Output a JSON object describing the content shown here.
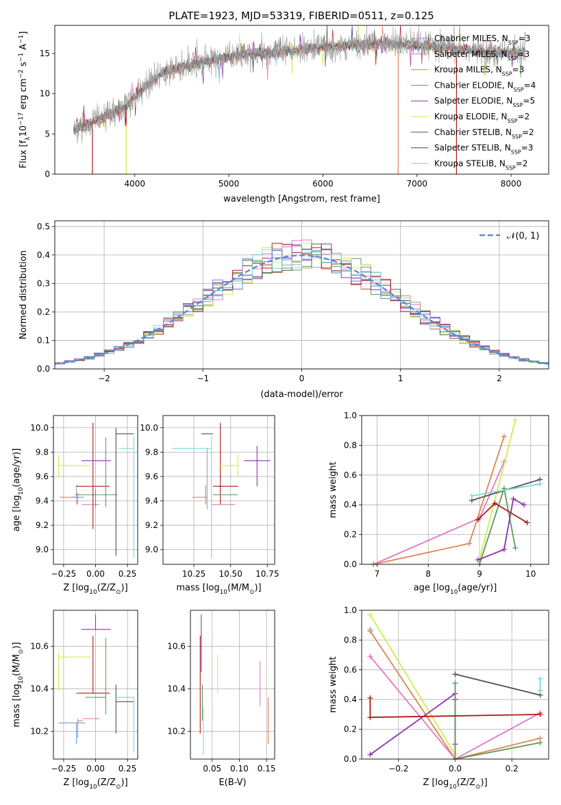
{
  "colors": {
    "chabrier_miles": "#a0a0a0",
    "salpeter_miles": "#e377c2",
    "kroupa_miles": "#dd8452",
    "chabrier_elodie": "#5a9a5a",
    "salpeter_elodie": "#8e2fae",
    "kroupa_elodie": "#d4ea4a",
    "chabrier_stelib": "#505050",
    "salpeter_stelib": "#b01616",
    "kroupa_stelib": "#7ad8dc",
    "normal_fit": "#5a8bd6",
    "blue_extra": "#6e9bd8"
  },
  "chart_data": [
    {
      "id": "spectrum",
      "type": "line",
      "title": "PLATE=1923, MJD=53319, FIBERID=0511, z=0.125",
      "xlabel": "wavelength [Angstrom, rest frame]",
      "ylabel_parts": [
        "Flux [f",
        "λ",
        "10",
        "−17",
        " erg cm",
        "−2",
        " s",
        "−1",
        " A",
        "−1",
        "]"
      ],
      "xlim": [
        3150,
        8400
      ],
      "ylim": [
        0,
        18.5
      ],
      "xticks": [
        4000,
        5000,
        6000,
        7000,
        8000
      ],
      "yticks": [
        0,
        5,
        10,
        15
      ],
      "continuum": [
        [
          3350,
          5.5
        ],
        [
          3500,
          6.2
        ],
        [
          3700,
          7.3
        ],
        [
          3900,
          8.4
        ],
        [
          4100,
          10.8
        ],
        [
          4300,
          12.5
        ],
        [
          4500,
          13.3
        ],
        [
          4700,
          13.9
        ],
        [
          4900,
          14.4
        ],
        [
          5200,
          14.9
        ],
        [
          5500,
          15.1
        ],
        [
          5800,
          15.5
        ],
        [
          6000,
          15.8
        ],
        [
          6300,
          16.1
        ],
        [
          6600,
          16.2
        ],
        [
          7000,
          16.0
        ],
        [
          7400,
          15.6
        ],
        [
          7800,
          15.1
        ],
        [
          8150,
          15.2
        ]
      ],
      "wmin": 3350,
      "wmax": 8150,
      "drops": [
        [
          3550,
          "salpeter_stelib"
        ],
        [
          3910,
          "kroupa_elodie"
        ],
        [
          6800,
          "kroupa_miles"
        ],
        [
          7420,
          "salpeter_stelib"
        ]
      ],
      "legend": [
        {
          "key": "chabrier_miles",
          "name": "Chabrier MILES",
          "n": "3"
        },
        {
          "key": "salpeter_miles",
          "name": "Salpeter MILES",
          "n": "3"
        },
        {
          "key": "kroupa_miles",
          "name": "Kroupa MILES",
          "n": "3"
        },
        {
          "key": "chabrier_elodie",
          "name": "Chabrier ELODIE",
          "n": "4"
        },
        {
          "key": "salpeter_elodie",
          "name": "Salpeter ELODIE",
          "n": "5"
        },
        {
          "key": "kroupa_elodie",
          "name": "Kroupa ELODIE",
          "n": "2"
        },
        {
          "key": "chabrier_stelib",
          "name": "Chabrier STELIB",
          "n": "2"
        },
        {
          "key": "salpeter_stelib",
          "name": "Salpeter STELIB",
          "n": "3"
        },
        {
          "key": "kroupa_stelib",
          "name": "Kroupa STELIB",
          "n": "2"
        }
      ],
      "legend_placement": "right",
      "grid": false
    },
    {
      "id": "residuals",
      "type": "histogram",
      "xlabel": "(data-model)/error",
      "ylabel": "Normed distribution",
      "xlim": [
        -2.5,
        2.5
      ],
      "ylim": [
        0,
        0.52
      ],
      "xticks": [
        -2,
        -1,
        0,
        1,
        2
      ],
      "yticks": [
        0.0,
        0.1,
        0.2,
        0.3,
        0.4,
        0.5
      ],
      "bin_width": 0.1,
      "legend": "𝒩(0, 1)",
      "legend_placement": "upper right",
      "grid": true
    },
    {
      "id": "age_vs_z",
      "type": "errorbar",
      "xlabel_parts": [
        "Z [log",
        "10",
        "(Z/Z",
        "⊙",
        ")]"
      ],
      "ylabel_parts": [
        "age  [log",
        "10",
        "(age/yr)]"
      ],
      "xlim": [
        -0.33,
        0.33
      ],
      "ylim": [
        8.88,
        10.1
      ],
      "xticks": [
        -0.25,
        0.0,
        0.25
      ],
      "yticks": [
        9.0,
        9.2,
        9.4,
        9.6,
        9.8,
        10.0
      ],
      "points": [
        {
          "c": "kroupa_elodie",
          "x": -0.29,
          "y": 9.69,
          "xe": [
            0.0,
            0.25
          ],
          "ye": [
            0.09,
            0.09
          ]
        },
        {
          "c": "kroupa_miles",
          "x": -0.14,
          "y": 9.43,
          "xe": [
            0.14,
            0.0
          ],
          "ye": [
            0.06,
            0.04
          ]
        },
        {
          "c": "blue_extra",
          "x": -0.19,
          "y": 9.43,
          "xe": [
            0.0,
            0.1
          ],
          "ye": [
            0.0,
            0.0
          ]
        },
        {
          "c": "salpeter_miles",
          "x": -0.11,
          "y": 9.37,
          "xe": [
            0.0,
            0.14
          ],
          "ye": [
            0.0,
            0.0
          ]
        },
        {
          "c": "chabrier_miles",
          "x": -0.15,
          "y": 9.44,
          "xe": [
            0.0,
            0.0
          ],
          "ye": [
            0.07,
            0.09
          ]
        },
        {
          "c": "chabrier_elodie",
          "x": 0.0,
          "y": 9.45,
          "xe": [
            0.16,
            0.17
          ],
          "ye": [
            0.1,
            0.05
          ]
        },
        {
          "c": "salpeter_stelib",
          "x": -0.02,
          "y": 9.52,
          "xe": [
            0.13,
            0.13
          ],
          "ye": [
            0.35,
            0.52
          ]
        },
        {
          "c": "salpeter_elodie",
          "x": 0.0,
          "y": 9.73,
          "xe": [
            0.11,
            0.12
          ],
          "ye": [
            0.0,
            0.0
          ]
        },
        {
          "c": "chabrier_elodie",
          "x": 0.08,
          "y": 9.35,
          "xe": [
            0.0,
            0.0
          ],
          "ye": [
            0.0,
            0.57
          ]
        },
        {
          "c": "chabrier_stelib",
          "x": 0.16,
          "y": 9.95,
          "xe": [
            0.0,
            0.14
          ],
          "ye": [
            1.0,
            0.05
          ]
        },
        {
          "c": "kroupa_stelib",
          "x": 0.3,
          "y": 9.83,
          "xe": [
            0.12,
            0.0
          ],
          "ye": [
            0.9,
            0.1
          ]
        }
      ],
      "grid": true
    },
    {
      "id": "age_vs_mass",
      "type": "errorbar",
      "xlabel_parts": [
        "mass [log",
        "10",
        "(M/M",
        "⊙",
        ")]"
      ],
      "ylabel": "",
      "xlim": [
        10.04,
        10.8
      ],
      "ylim": [
        8.88,
        10.1
      ],
      "xticks": [
        10.25,
        10.5,
        10.75
      ],
      "yticks": [
        9.0,
        9.2,
        9.4,
        9.6,
        9.8,
        10.0
      ],
      "points": [
        {
          "c": "kroupa_stelib",
          "x": 10.1,
          "y": 9.83,
          "xe": [
            0.0,
            0.27
          ],
          "ye": [
            0.0,
            0.0
          ]
        },
        {
          "c": "chabrier_stelib",
          "x": 10.3,
          "y": 9.95,
          "xe": [
            0.0,
            0.08
          ],
          "ye": [
            0.0,
            0.0
          ]
        },
        {
          "c": "kroupa_miles",
          "x": 10.24,
          "y": 9.43,
          "xe": [
            0.0,
            0.1
          ],
          "ye": [
            0.0,
            0.0
          ]
        },
        {
          "c": "blue_extra",
          "x": 10.33,
          "y": 9.43,
          "xe": [
            0.0,
            0.0
          ],
          "ye": [
            0.06,
            0.1
          ]
        },
        {
          "c": "chabrier_miles",
          "x": 10.34,
          "y": 9.43,
          "xe": [
            0.0,
            0.0
          ],
          "ye": [
            0.1,
            0.4
          ]
        },
        {
          "c": "kroupa_stelib",
          "x": 10.37,
          "y": 9.83,
          "xe": [
            0.0,
            0.0
          ],
          "ye": [
            0.9,
            0.1
          ]
        },
        {
          "c": "salpeter_stelib",
          "x": 10.38,
          "y": 9.52,
          "xe": [
            0.0,
            0.17
          ],
          "ye": [
            0.0,
            0.0
          ]
        },
        {
          "c": "salpeter_stelib",
          "x": 10.43,
          "y": 9.52,
          "xe": [
            0.0,
            0.0
          ],
          "ye": [
            0.15,
            0.52
          ]
        },
        {
          "c": "kroupa_elodie",
          "x": 10.55,
          "y": 9.69,
          "xe": [
            0.13,
            0.0
          ],
          "ye": [
            0.09,
            0.09
          ]
        },
        {
          "c": "chabrier_elodie",
          "x": 10.45,
          "y": 9.45,
          "xe": [
            0.07,
            0.1
          ],
          "ye": [
            0.0,
            0.0
          ]
        },
        {
          "c": "salpeter_miles",
          "x": 10.45,
          "y": 9.37,
          "xe": [
            0.08,
            0.08
          ],
          "ye": [
            0.0,
            0.0
          ]
        },
        {
          "c": "salpeter_elodie",
          "x": 10.68,
          "y": 9.73,
          "xe": [
            0.09,
            0.09
          ],
          "ye": [
            0.21,
            0.12
          ]
        }
      ],
      "grid": true
    },
    {
      "id": "weight_vs_age",
      "type": "line",
      "xlabel_parts": [
        "age  [log",
        "10",
        "(age/yr)]"
      ],
      "ylabel": "mass weight",
      "xlim": [
        6.7,
        10.35
      ],
      "ylim": [
        0,
        1.0
      ],
      "xticks": [
        7,
        8,
        9,
        10
      ],
      "yticks": [
        0.0,
        0.2,
        0.4,
        0.6,
        0.8,
        1.0
      ],
      "series": [
        {
          "c": "salpeter_miles",
          "x": [
            6.93,
            9.0,
            9.48
          ],
          "y": [
            0.0,
            0.31,
            0.69
          ]
        },
        {
          "c": "kroupa_miles",
          "x": [
            6.93,
            8.8,
            9.48
          ],
          "y": [
            0.0,
            0.14,
            0.86
          ]
        },
        {
          "c": "kroupa_elodie",
          "x": [
            9.0,
            9.7
          ],
          "y": [
            0.03,
            0.97
          ]
        },
        {
          "c": "chabrier_elodie",
          "x": [
            9.0,
            9.48,
            9.7
          ],
          "y": [
            0.0,
            0.51,
            0.11
          ]
        },
        {
          "c": "salpeter_elodie",
          "x": [
            8.97,
            9.48,
            9.66,
            9.87
          ],
          "y": [
            0.03,
            0.1,
            0.44,
            0.4
          ]
        },
        {
          "c": "salpeter_stelib",
          "x": [
            8.97,
            9.3,
            9.93
          ],
          "y": [
            0.3,
            0.41,
            0.28
          ]
        },
        {
          "c": "chabrier_stelib",
          "x": [
            8.85,
            10.18
          ],
          "y": [
            0.43,
            0.57
          ]
        },
        {
          "c": "kroupa_stelib",
          "x": [
            8.85,
            10.18
          ],
          "y": [
            0.46,
            0.54
          ]
        }
      ],
      "grid": true
    },
    {
      "id": "mass_vs_z",
      "type": "errorbar",
      "xlabel_parts": [
        "Z [log",
        "10",
        "(Z/Z",
        "⊙",
        ")]"
      ],
      "ylabel_parts": [
        "mass [log",
        "10",
        "(M/M",
        "⊙",
        ")]"
      ],
      "xlim": [
        -0.33,
        0.33
      ],
      "ylim": [
        10.07,
        10.77
      ],
      "xticks": [
        -0.25,
        0.0,
        0.25
      ],
      "yticks": [
        10.2,
        10.4,
        10.6
      ],
      "points": [
        {
          "c": "kroupa_elodie",
          "x": -0.29,
          "y": 10.55,
          "xe": [
            0.0,
            0.25
          ],
          "ye": [
            0.16,
            0.02
          ]
        },
        {
          "c": "blue_extra",
          "x": -0.15,
          "y": 10.24,
          "xe": [
            0.14,
            0.07
          ],
          "ye": [
            0.1,
            0.0
          ]
        },
        {
          "c": "kroupa_miles",
          "x": -0.14,
          "y": 10.25,
          "xe": [
            0.0,
            0.04
          ],
          "ye": [
            0.08,
            0.01
          ]
        },
        {
          "c": "salpeter_miles",
          "x": -0.1,
          "y": 10.26,
          "xe": [
            0.0,
            0.13
          ],
          "ye": [
            0.0,
            0.0
          ]
        },
        {
          "c": "salpeter_elodie",
          "x": 0.0,
          "y": 10.68,
          "xe": [
            0.11,
            0.12
          ],
          "ye": [
            0.0,
            0.07
          ]
        },
        {
          "c": "salpeter_stelib",
          "x": -0.02,
          "y": 10.38,
          "xe": [
            0.13,
            0.13
          ],
          "ye": [
            0.0,
            0.27
          ]
        },
        {
          "c": "chabrier_elodie",
          "x": 0.08,
          "y": 10.36,
          "xe": [
            0.16,
            0.0
          ],
          "ye": [
            0.08,
            0.28
          ]
        },
        {
          "c": "chabrier_stelib",
          "x": 0.16,
          "y": 10.34,
          "xe": [
            0.0,
            0.14
          ],
          "ye": [
            0.15,
            0.08
          ]
        },
        {
          "c": "kroupa_stelib",
          "x": 0.3,
          "y": 10.36,
          "xe": [
            0.14,
            0.0
          ],
          "ye": [
            0.26,
            0.0
          ]
        }
      ],
      "grid": true
    },
    {
      "id": "mass_vs_ebv",
      "type": "errorbar",
      "xlabel": "E(B-V)",
      "ylabel": "",
      "xlim": [
        0.01,
        0.165
      ],
      "ylim": [
        10.07,
        10.77
      ],
      "xticks": [
        0.05,
        0.1,
        0.15
      ],
      "yticks": [
        10.2,
        10.4,
        10.6
      ],
      "points": [
        {
          "c": "salpeter_stelib",
          "x": 0.028,
          "y": 10.36,
          "xe": [
            0.0,
            0.0
          ],
          "ye": [
            0.17,
            0.29
          ]
        },
        {
          "c": "salpeter_elodie",
          "x": 0.03,
          "y": 10.6,
          "xe": [
            0.0,
            0.0
          ],
          "ye": [
            0.12,
            0.15
          ]
        },
        {
          "c": "chabrier_elodie",
          "x": 0.032,
          "y": 10.3,
          "xe": [
            0.0,
            0.0
          ],
          "ye": [
            0.05,
            0.12
          ]
        },
        {
          "c": "kroupa_stelib",
          "x": 0.034,
          "y": 10.21,
          "xe": [
            0.0,
            0.0
          ],
          "ye": [
            0.12,
            0.1
          ]
        },
        {
          "c": "kroupa_elodie",
          "x": 0.06,
          "y": 10.46,
          "xe": [
            0.0,
            0.0
          ],
          "ye": [
            0.08,
            0.1
          ]
        },
        {
          "c": "salpeter_miles",
          "x": 0.138,
          "y": 10.43,
          "xe": [
            0.0,
            0.0
          ],
          "ye": [
            0.11,
            0.1
          ]
        },
        {
          "c": "kroupa_miles",
          "x": 0.153,
          "y": 10.25,
          "xe": [
            0.0,
            0.0
          ],
          "ye": [
            0.11,
            0.11
          ]
        }
      ],
      "grid": true
    },
    {
      "id": "weight_vs_z",
      "type": "line",
      "xlabel_parts": [
        "Z [log",
        "10",
        "(Z/Z",
        "⊙",
        ")]"
      ],
      "ylabel": "mass weight",
      "xlim": [
        -0.33,
        0.33
      ],
      "ylim": [
        0,
        1.0
      ],
      "xticks": [
        -0.2,
        0.0,
        0.2
      ],
      "yticks": [
        0.0,
        0.2,
        0.4,
        0.6,
        0.8,
        1.0
      ],
      "series": [
        {
          "c": "kroupa_elodie",
          "x": [
            -0.3,
            0.0
          ],
          "y": [
            0.97,
            0.03
          ]
        },
        {
          "c": "kroupa_miles",
          "x": [
            -0.3,
            0.0,
            0.3
          ],
          "y": [
            0.86,
            0.0,
            0.14
          ]
        },
        {
          "c": "chabrier_miles",
          "x": [
            -0.3
          ],
          "y": [
            0.87
          ]
        },
        {
          "c": "salpeter_miles",
          "x": [
            -0.3,
            0.0,
            0.3
          ],
          "y": [
            0.69,
            0.0,
            0.31
          ]
        },
        {
          "c": "salpeter_elodie",
          "x": [
            -0.3,
            0.0,
            0.0,
            0.0
          ],
          "y": [
            0.03,
            0.44,
            0.4,
            0.1
          ]
        },
        {
          "c": "chabrier_elodie",
          "x": [
            0.0,
            0.0,
            0.3
          ],
          "y": [
            0.51,
            0.0,
            0.11
          ]
        },
        {
          "c": "salpeter_stelib",
          "x": [
            -0.3,
            -0.3,
            0.3
          ],
          "y": [
            0.41,
            0.28,
            0.3
          ]
        },
        {
          "c": "chabrier_stelib",
          "x": [
            0.0,
            0.3
          ],
          "y": [
            0.57,
            0.43
          ]
        },
        {
          "c": "kroupa_stelib",
          "x": [
            0.3,
            0.3
          ],
          "y": [
            0.46,
            0.54
          ]
        }
      ],
      "grid": true
    }
  ]
}
